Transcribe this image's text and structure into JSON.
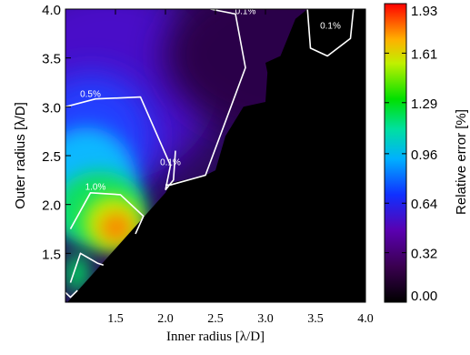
{
  "chart_data": {
    "type": "heatmap",
    "title": "",
    "xlabel": "Inner radius [λ/D]",
    "ylabel": "Outer radius [λ/D]",
    "xlim": [
      1.0,
      4.0
    ],
    "ylim": [
      1.0,
      4.0
    ],
    "x_ticks": [
      1.5,
      2.0,
      2.5,
      3.0,
      3.5,
      4.0
    ],
    "x_tick_labels": [
      "1.5",
      "2.0",
      "2.5",
      "3.0",
      "3.5",
      "4.0"
    ],
    "y_ticks": [
      1.5,
      2.0,
      2.5,
      3.0,
      3.5,
      4.0
    ],
    "y_tick_labels": [
      "1.5",
      "2.0",
      "2.5",
      "3.0",
      "3.5",
      "4.0"
    ],
    "colorbar": {
      "label": "Relative error [%]",
      "range": [
        0.0,
        1.93
      ],
      "ticks": [
        0.0,
        0.32,
        0.64,
        0.96,
        1.29,
        1.61,
        1.93
      ],
      "tick_labels": [
        "0.00",
        "0.32",
        "0.64",
        "0.96",
        "1.29",
        "1.61",
        "1.93"
      ],
      "colormap": "rainbow (black-purple-blue-cyan-green-yellow-red)"
    },
    "peak": {
      "x": 1.55,
      "y": 1.72,
      "value": 1.93
    },
    "undefined_region": "outer radius ≤ inner radius and right side (black, value 0)",
    "contours": [
      {
        "label": "0.1%",
        "level": 0.1,
        "points": [
          [
            2.45,
            4.0
          ],
          [
            2.7,
            3.95
          ],
          [
            2.8,
            3.4
          ],
          [
            2.4,
            2.3
          ],
          [
            2.05,
            2.2
          ],
          [
            2.0,
            2.2
          ]
        ],
        "label_at": [
          2.8,
          3.95
        ]
      },
      {
        "label": "0.1%",
        "level": 0.1,
        "points": [
          [
            3.42,
            4.0
          ],
          [
            3.45,
            3.6
          ],
          [
            3.62,
            3.52
          ],
          [
            3.85,
            3.7
          ],
          [
            3.88,
            4.0
          ]
        ],
        "label_at": [
          3.65,
          3.8
        ]
      },
      {
        "label": "0.1%",
        "level": 0.1,
        "points": [
          [
            2.0,
            2.15
          ],
          [
            2.08,
            2.25
          ],
          [
            2.1,
            2.55
          ]
        ],
        "label_at": [
          2.05,
          2.4
        ]
      },
      {
        "label": "0.5%",
        "level": 0.5,
        "points": [
          [
            1.0,
            3.0
          ],
          [
            1.3,
            3.08
          ],
          [
            1.75,
            3.1
          ],
          [
            2.05,
            2.4
          ],
          [
            2.0,
            2.15
          ]
        ],
        "label_at": [
          1.25,
          3.1
        ]
      },
      {
        "label": "1.0%",
        "level": 1.0,
        "points": [
          [
            1.05,
            1.75
          ],
          [
            1.25,
            2.12
          ],
          [
            1.55,
            2.1
          ],
          [
            1.78,
            1.88
          ],
          [
            1.7,
            1.7
          ]
        ],
        "label_at": [
          1.3,
          2.15
        ]
      },
      {
        "label": "",
        "level": 1.5,
        "points": [
          [
            1.05,
            1.2
          ],
          [
            1.15,
            1.5
          ],
          [
            1.32,
            1.4
          ],
          [
            1.38,
            1.38
          ]
        ],
        "label_at": null
      },
      {
        "label": "",
        "level": 1.5,
        "points": [
          [
            1.0,
            1.1
          ],
          [
            1.05,
            1.05
          ],
          [
            1.12,
            1.12
          ]
        ],
        "label_at": null
      }
    ]
  }
}
